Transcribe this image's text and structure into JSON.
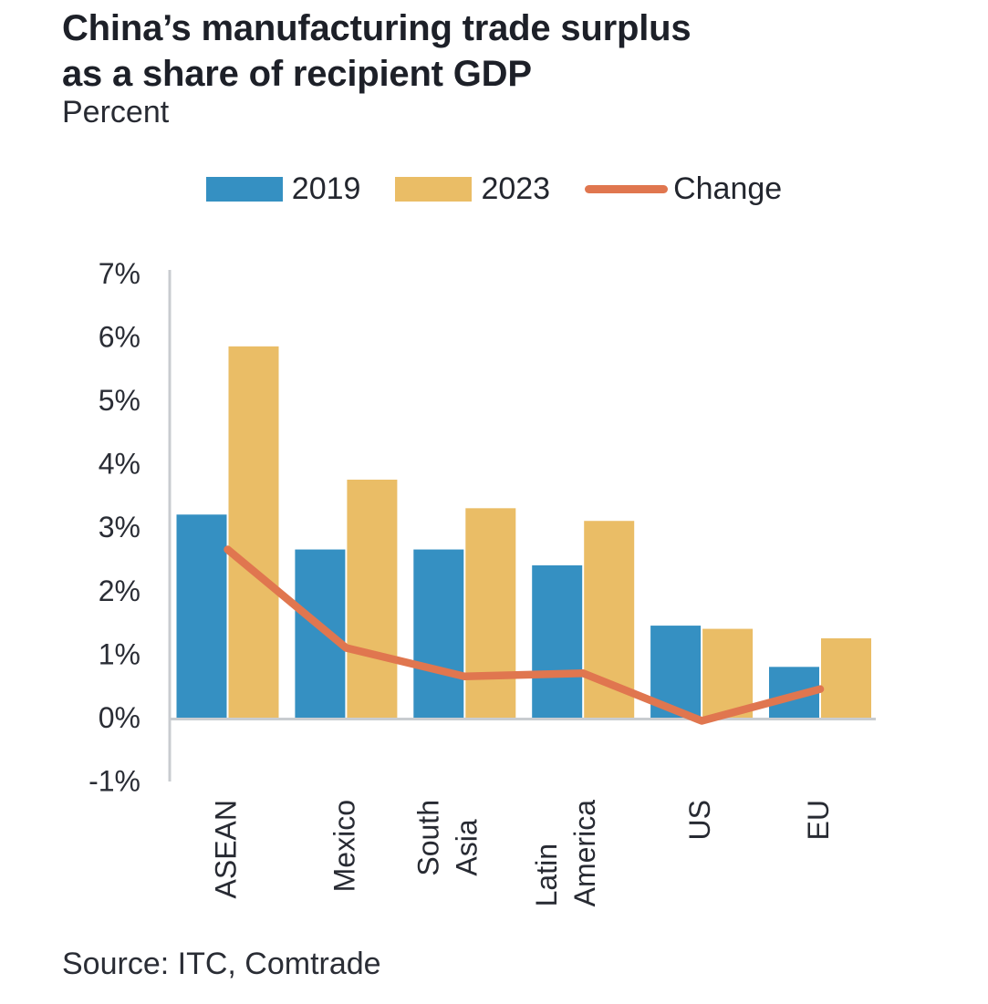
{
  "source": "Source: ITC, Comtrade",
  "chart_data": {
    "type": "bar+line",
    "title": "China’s manufacturing trade surplus\nas a share of recipient GDP",
    "ylabel": "Percent",
    "categories": [
      "ASEAN",
      "Mexico",
      "South\nAsia",
      "Latin\nAmerica",
      "US",
      "EU"
    ],
    "series": [
      {
        "name": "2019",
        "type": "bar",
        "color": "#3590c2",
        "values": [
          3.2,
          2.65,
          2.65,
          2.4,
          1.45,
          0.8
        ]
      },
      {
        "name": "2023",
        "type": "bar",
        "color": "#eabd66",
        "values": [
          5.85,
          3.75,
          3.3,
          3.1,
          1.4,
          1.25
        ]
      },
      {
        "name": "Change",
        "type": "line",
        "color": "#e0764f",
        "values": [
          2.65,
          1.1,
          0.65,
          0.7,
          -0.05,
          0.45
        ]
      }
    ],
    "ylim": [
      -1,
      7
    ],
    "yticks": [
      {
        "value": 7,
        "label": "7%"
      },
      {
        "value": 6,
        "label": "6%"
      },
      {
        "value": 5,
        "label": "5%"
      },
      {
        "value": 4,
        "label": "4%"
      },
      {
        "value": 3,
        "label": "3%"
      },
      {
        "value": 2,
        "label": "2%"
      },
      {
        "value": 1,
        "label": "1%"
      },
      {
        "value": 0,
        "label": "0%"
      },
      {
        "value": -1,
        "label": "-1%"
      }
    ],
    "grid": false,
    "legend_position": "top-center"
  }
}
